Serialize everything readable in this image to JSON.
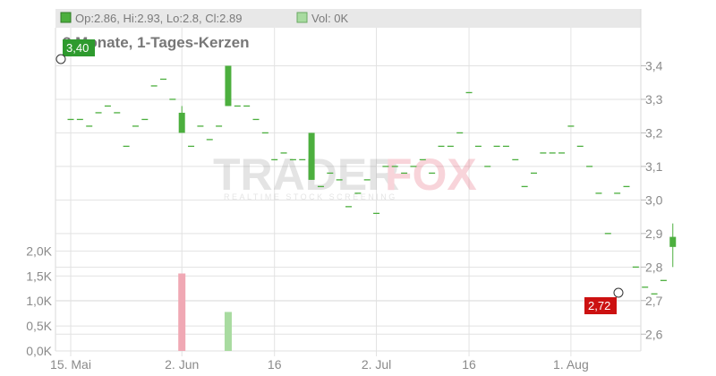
{
  "header": {
    "ohlc_text": "Op:2.86, Hi:2.93, Lo:2.8, Cl:2.89",
    "vol_text": "Vol: 0K"
  },
  "watermark": {
    "brand_left": "TRADER",
    "brand_right": "FOX",
    "tagline": "REALTIME STOCK SCREENING"
  },
  "chart_data": {
    "type": "candlestick",
    "title": "3 Monate, 1-Tages-Kerzen",
    "price_axis": {
      "ylim": [
        2.55,
        3.5
      ],
      "ticks": [
        "3,4",
        "3,3",
        "3,2",
        "3,1",
        "3,0",
        "2,9",
        "2,8",
        "2,7",
        "2,6"
      ],
      "tick_values": [
        3.4,
        3.3,
        3.2,
        3.1,
        3.0,
        2.9,
        2.8,
        2.7,
        2.6
      ]
    },
    "volume_axis": {
      "ylim": [
        0,
        2150
      ],
      "ticks": [
        "2,0K",
        "1,5K",
        "1,0K",
        "0,5K",
        "0,0K"
      ],
      "tick_values": [
        2000,
        1500,
        1000,
        500,
        0
      ]
    },
    "x_labels": [
      {
        "label": "15. Mai",
        "index": 0
      },
      {
        "label": "2. Jun",
        "index": 12
      },
      {
        "label": "16",
        "index": 22
      },
      {
        "label": "2. Jul",
        "index": 33
      },
      {
        "label": "16",
        "index": 43
      },
      {
        "label": "1. Aug",
        "index": 54
      }
    ],
    "max_label": "3,40",
    "min_label": "2,72",
    "candles": [
      [
        3.24,
        3.24,
        3.24,
        3.24
      ],
      [
        3.24,
        3.24,
        3.24,
        3.24
      ],
      [
        3.22,
        3.22,
        3.22,
        3.22
      ],
      [
        3.26,
        3.26,
        3.26,
        3.26
      ],
      [
        3.28,
        3.28,
        3.28,
        3.28
      ],
      [
        3.26,
        3.26,
        3.26,
        3.26
      ],
      [
        3.16,
        3.16,
        3.16,
        3.16
      ],
      [
        3.22,
        3.22,
        3.22,
        3.22
      ],
      [
        3.24,
        3.24,
        3.24,
        3.24
      ],
      [
        3.34,
        3.34,
        3.34,
        3.34
      ],
      [
        3.36,
        3.36,
        3.36,
        3.36
      ],
      [
        3.3,
        3.3,
        3.3,
        3.3
      ],
      [
        3.2,
        3.28,
        3.2,
        3.26
      ],
      [
        3.16,
        3.16,
        3.16,
        3.16
      ],
      [
        3.22,
        3.22,
        3.22,
        3.22
      ],
      [
        3.18,
        3.18,
        3.18,
        3.18
      ],
      [
        3.22,
        3.22,
        3.22,
        3.22
      ],
      [
        3.28,
        3.4,
        3.28,
        3.4
      ],
      [
        3.28,
        3.28,
        3.28,
        3.28
      ],
      [
        3.28,
        3.28,
        3.28,
        3.28
      ],
      [
        3.24,
        3.24,
        3.24,
        3.24
      ],
      [
        3.2,
        3.2,
        3.2,
        3.2
      ],
      [
        3.12,
        3.12,
        3.12,
        3.12
      ],
      [
        3.14,
        3.14,
        3.14,
        3.14
      ],
      [
        3.12,
        3.12,
        3.12,
        3.12
      ],
      [
        3.12,
        3.12,
        3.12,
        3.12
      ],
      [
        3.06,
        3.2,
        3.06,
        3.2
      ],
      [
        3.04,
        3.04,
        3.04,
        3.04
      ],
      [
        3.08,
        3.08,
        3.08,
        3.08
      ],
      [
        3.06,
        3.06,
        3.06,
        3.06
      ],
      [
        2.98,
        2.98,
        2.98,
        2.98
      ],
      [
        3.02,
        3.02,
        3.02,
        3.02
      ],
      [
        3.06,
        3.06,
        3.06,
        3.06
      ],
      [
        2.96,
        2.96,
        2.96,
        2.96
      ],
      [
        3.1,
        3.1,
        3.1,
        3.1
      ],
      [
        3.1,
        3.1,
        3.1,
        3.1
      ],
      [
        3.08,
        3.08,
        3.08,
        3.08
      ],
      [
        3.1,
        3.1,
        3.1,
        3.1
      ],
      [
        3.12,
        3.12,
        3.12,
        3.12
      ],
      [
        3.08,
        3.08,
        3.08,
        3.08
      ],
      [
        3.16,
        3.16,
        3.16,
        3.16
      ],
      [
        3.16,
        3.16,
        3.16,
        3.16
      ],
      [
        3.2,
        3.2,
        3.2,
        3.2
      ],
      [
        3.32,
        3.32,
        3.32,
        3.32
      ],
      [
        3.16,
        3.16,
        3.16,
        3.16
      ],
      [
        3.1,
        3.1,
        3.1,
        3.1
      ],
      [
        3.16,
        3.16,
        3.16,
        3.16
      ],
      [
        3.16,
        3.16,
        3.16,
        3.16
      ],
      [
        3.12,
        3.12,
        3.12,
        3.12
      ],
      [
        3.04,
        3.04,
        3.04,
        3.04
      ],
      [
        3.08,
        3.08,
        3.08,
        3.08
      ],
      [
        3.14,
        3.14,
        3.14,
        3.14
      ],
      [
        3.14,
        3.14,
        3.14,
        3.14
      ],
      [
        3.14,
        3.14,
        3.14,
        3.14
      ],
      [
        3.22,
        3.22,
        3.22,
        3.22
      ],
      [
        3.16,
        3.16,
        3.16,
        3.16
      ],
      [
        3.1,
        3.1,
        3.1,
        3.1
      ],
      [
        3.02,
        3.02,
        3.02,
        3.02
      ],
      [
        2.9,
        2.9,
        2.9,
        2.9
      ],
      [
        3.02,
        3.02,
        3.02,
        3.02
      ],
      [
        3.04,
        3.04,
        3.04,
        3.04
      ],
      [
        2.8,
        2.8,
        2.8,
        2.8
      ],
      [
        2.74,
        2.74,
        2.74,
        2.74
      ],
      [
        2.72,
        2.72,
        2.72,
        2.72
      ],
      [
        2.76,
        2.76,
        2.76,
        2.76
      ],
      [
        2.86,
        2.93,
        2.8,
        2.89
      ]
    ],
    "volumes": [
      {
        "index": 12,
        "value": 1550,
        "type": "down"
      },
      {
        "index": 17,
        "value": 780,
        "type": "up"
      }
    ],
    "colors": {
      "up": "#4caf3e",
      "down": "#cc1111",
      "vol_up": "#a8dba0",
      "vol_down": "#f0a8b4",
      "grid": "#e2e2e2",
      "header_bg": "#e8e8e8"
    }
  }
}
